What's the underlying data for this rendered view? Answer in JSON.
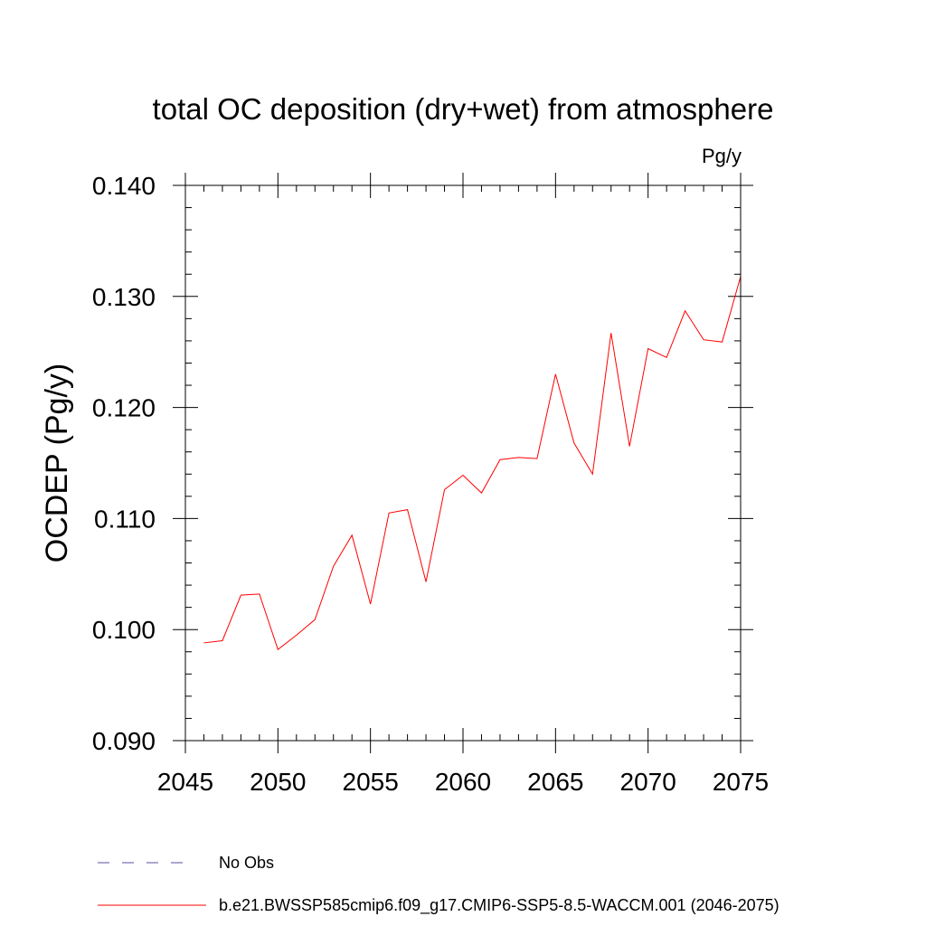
{
  "chart_data": {
    "type": "line",
    "title": "total OC deposition (dry+wet) from atmosphere",
    "units_label": "Pg/y",
    "ylabel": "OCDEP  (Pg/y)",
    "xlabel": "",
    "xlim": [
      2045,
      2075
    ],
    "ylim": [
      0.09,
      0.14
    ],
    "x_ticks": [
      2045,
      2050,
      2055,
      2060,
      2065,
      2070,
      2075
    ],
    "x_tick_labels": [
      "2045",
      "2050",
      "2055",
      "2060",
      "2065",
      "2070",
      "2075"
    ],
    "y_ticks": [
      0.09,
      0.1,
      0.11,
      0.12,
      0.13,
      0.14
    ],
    "y_tick_labels": [
      "0.090",
      "0.100",
      "0.110",
      "0.120",
      "0.130",
      "0.140"
    ],
    "grid": false,
    "legend_position": "bottom",
    "series": [
      {
        "name": "b.e21.BWSSP585cmip6.f09_g17.CMIP6-SSP5-8.5-WACCM.001 (2046-2075)",
        "color": "#ff0000",
        "style": "solid",
        "x": [
          2046,
          2047,
          2048,
          2049,
          2050,
          2051,
          2052,
          2053,
          2054,
          2055,
          2056,
          2057,
          2058,
          2059,
          2060,
          2061,
          2062,
          2063,
          2064,
          2065,
          2066,
          2067,
          2068,
          2069,
          2070,
          2071,
          2072,
          2073,
          2074,
          2075
        ],
        "values": [
          0.0988,
          0.099,
          0.1031,
          0.1032,
          0.0982,
          0.0995,
          0.1009,
          0.1057,
          0.1085,
          0.1023,
          0.1105,
          0.1108,
          0.1043,
          0.1126,
          0.1139,
          0.1123,
          0.1153,
          0.1155,
          0.1154,
          0.123,
          0.1168,
          0.114,
          0.1267,
          0.1165,
          0.1253,
          0.1245,
          0.1287,
          0.1261,
          0.1259,
          0.1318
        ]
      },
      {
        "name": "No Obs",
        "color": "#5a4fa0",
        "style": "dashed",
        "x": [],
        "values": []
      }
    ]
  }
}
